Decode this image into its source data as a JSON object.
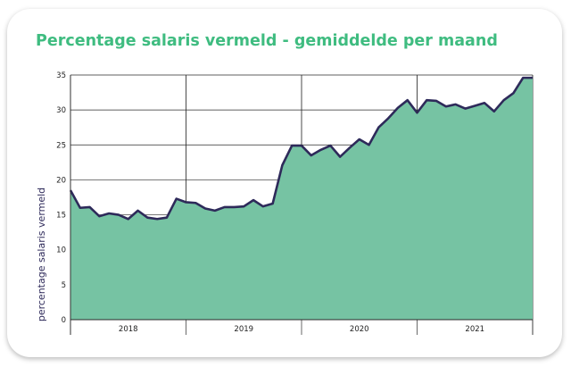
{
  "chart_data": {
    "type": "area",
    "title": "Percentage salaris vermeld - gemiddelde per maand",
    "xlabel": "",
    "ylabel": "percentage salaris vermeld",
    "ylim": [
      0,
      35
    ],
    "yticks": [
      "0",
      "5",
      "10",
      "15",
      "20",
      "25",
      "30",
      "35"
    ],
    "year_labels": [
      "2018",
      "2019",
      "2020",
      "2021"
    ],
    "grid": true,
    "x": [
      "2018-01",
      "2018-02",
      "2018-03",
      "2018-04",
      "2018-05",
      "2018-06",
      "2018-07",
      "2018-08",
      "2018-09",
      "2018-10",
      "2018-11",
      "2018-12",
      "2019-01",
      "2019-02",
      "2019-03",
      "2019-04",
      "2019-05",
      "2019-06",
      "2019-07",
      "2019-08",
      "2019-09",
      "2019-10",
      "2019-11",
      "2019-12",
      "2020-01",
      "2020-02",
      "2020-03",
      "2020-04",
      "2020-05",
      "2020-06",
      "2020-07",
      "2020-08",
      "2020-09",
      "2020-10",
      "2020-11",
      "2020-12",
      "2021-01",
      "2021-02",
      "2021-03",
      "2021-04",
      "2021-05",
      "2021-06",
      "2021-07",
      "2021-08",
      "2021-09",
      "2021-10",
      "2021-11",
      "2021-12",
      "2022-01"
    ],
    "values": [
      18.5,
      16.0,
      16.1,
      14.8,
      15.2,
      15.0,
      14.4,
      15.6,
      14.6,
      14.4,
      14.6,
      17.3,
      16.8,
      16.7,
      15.9,
      15.6,
      16.1,
      16.1,
      16.2,
      17.1,
      16.2,
      16.6,
      22.1,
      24.9,
      24.9,
      23.5,
      24.3,
      24.9,
      23.3,
      24.6,
      25.8,
      25.0,
      27.5,
      28.8,
      30.3,
      31.4,
      29.6,
      31.4,
      31.3,
      30.5,
      30.8,
      30.2,
      30.6,
      31.0,
      29.8,
      31.4,
      32.4,
      34.6,
      34.6
    ],
    "colors": {
      "fill": "#76c3a3",
      "line": "#2e2a5a",
      "title": "#3fbc80",
      "grid": "#2a2a2a"
    }
  }
}
